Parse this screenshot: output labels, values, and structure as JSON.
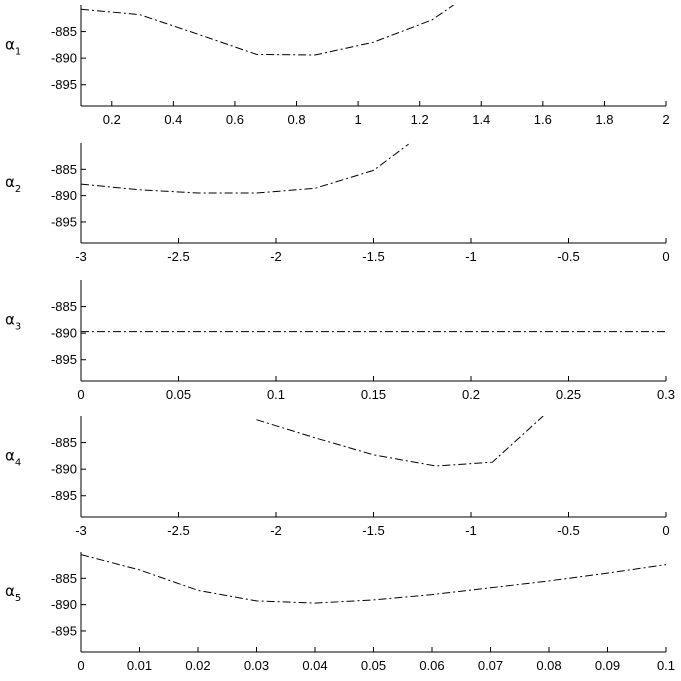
{
  "colors": {
    "line": "#000000",
    "axis": "#000000",
    "background": "#ffffff"
  },
  "chart_data": [
    {
      "type": "line",
      "ylabel": "α",
      "ylabel_sub": "1",
      "xlim": [
        0.1,
        2
      ],
      "ylim": [
        -899,
        -880
      ],
      "xticks": [
        0.2,
        0.4,
        0.6,
        0.8,
        1,
        1.2,
        1.4,
        1.6,
        1.8,
        2
      ],
      "xtick_labels": [
        "0.2",
        "0.4",
        "0.6",
        "0.8",
        "1",
        "1.2",
        "1.4",
        "1.6",
        "1.8",
        "2"
      ],
      "yticks": [
        -885,
        -890,
        -895
      ],
      "ytick_labels": [
        "-885",
        "-890",
        "-895"
      ],
      "grid": false,
      "line_style": "dash-dot",
      "series": [
        {
          "x": [
            0.1,
            0.29,
            0.48,
            0.67,
            0.86,
            1.05,
            1.24,
            1.31
          ],
          "y": [
            -880.8,
            -881.8,
            -885.5,
            -889.3,
            -889.4,
            -887.0,
            -882.8,
            -880.0
          ]
        }
      ]
    },
    {
      "type": "line",
      "ylabel": "α",
      "ylabel_sub": "2",
      "xlim": [
        -3,
        0
      ],
      "ylim": [
        -899,
        -880
      ],
      "xticks": [
        -3,
        -2.5,
        -2,
        -1.5,
        -1,
        -0.5,
        0
      ],
      "xtick_labels": [
        "-3",
        "-2.5",
        "-2",
        "-1.5",
        "-1",
        "-0.5",
        "0"
      ],
      "yticks": [
        -885,
        -890,
        -895
      ],
      "ytick_labels": [
        "-885",
        "-890",
        "-895"
      ],
      "grid": false,
      "line_style": "dash-dot",
      "series": [
        {
          "x": [
            -3,
            -2.7,
            -2.4,
            -2.1,
            -1.8,
            -1.5,
            -1.32
          ],
          "y": [
            -887.8,
            -888.9,
            -889.5,
            -889.5,
            -888.6,
            -885.2,
            -880.2
          ]
        }
      ]
    },
    {
      "type": "line",
      "ylabel": "α",
      "ylabel_sub": "3",
      "xlim": [
        0,
        0.3
      ],
      "ylim": [
        -899,
        -880
      ],
      "xticks": [
        0,
        0.05,
        0.1,
        0.15,
        0.2,
        0.25,
        0.3
      ],
      "xtick_labels": [
        "0",
        "0.05",
        "0.1",
        "0.15",
        "0.2",
        "0.25",
        "0.3"
      ],
      "yticks": [
        -885,
        -890,
        -895
      ],
      "ytick_labels": [
        "-885",
        "-890",
        "-895"
      ],
      "grid": false,
      "line_style": "dash-dot",
      "series": [
        {
          "x": [
            0,
            0.3
          ],
          "y": [
            -889.7,
            -889.7
          ]
        }
      ]
    },
    {
      "type": "line",
      "ylabel": "α",
      "ylabel_sub": "4",
      "xlim": [
        -3,
        0
      ],
      "ylim": [
        -899,
        -880
      ],
      "xticks": [
        -3,
        -2.5,
        -2,
        -1.5,
        -1,
        -0.5,
        0
      ],
      "xtick_labels": [
        "-3",
        "-2.5",
        "-2",
        "-1.5",
        "-1",
        "-0.5",
        "0"
      ],
      "yticks": [
        -885,
        -890,
        -895
      ],
      "ytick_labels": [
        "-885",
        "-890",
        "-895"
      ],
      "grid": false,
      "line_style": "dash-dot",
      "series": [
        {
          "x": [
            -2.1,
            -1.8,
            -1.5,
            -1.18,
            -0.89,
            -0.63
          ],
          "y": [
            -880.7,
            -884.1,
            -887.3,
            -889.4,
            -888.7,
            -880.0
          ]
        }
      ]
    },
    {
      "type": "line",
      "ylabel": "α",
      "ylabel_sub": "5",
      "xlim": [
        0,
        0.1
      ],
      "ylim": [
        -899,
        -880
      ],
      "xticks": [
        0,
        0.01,
        0.02,
        0.03,
        0.04,
        0.05,
        0.06,
        0.07,
        0.08,
        0.09,
        0.1
      ],
      "xtick_labels": [
        "0",
        "0.01",
        "0.02",
        "0.03",
        "0.04",
        "0.05",
        "0.06",
        "0.07",
        "0.08",
        "0.09",
        "0.1"
      ],
      "yticks": [
        -885,
        -890,
        -895
      ],
      "ytick_labels": [
        "-885",
        "-890",
        "-895"
      ],
      "grid": false,
      "line_style": "dash-dot",
      "series": [
        {
          "x": [
            0,
            0.01,
            0.02,
            0.03,
            0.04,
            0.05,
            0.06,
            0.07,
            0.08,
            0.09,
            0.1
          ],
          "y": [
            -880.5,
            -883.4,
            -887.3,
            -889.3,
            -889.7,
            -889.1,
            -888.1,
            -886.8,
            -885.5,
            -884.0,
            -882.4
          ]
        }
      ]
    }
  ]
}
